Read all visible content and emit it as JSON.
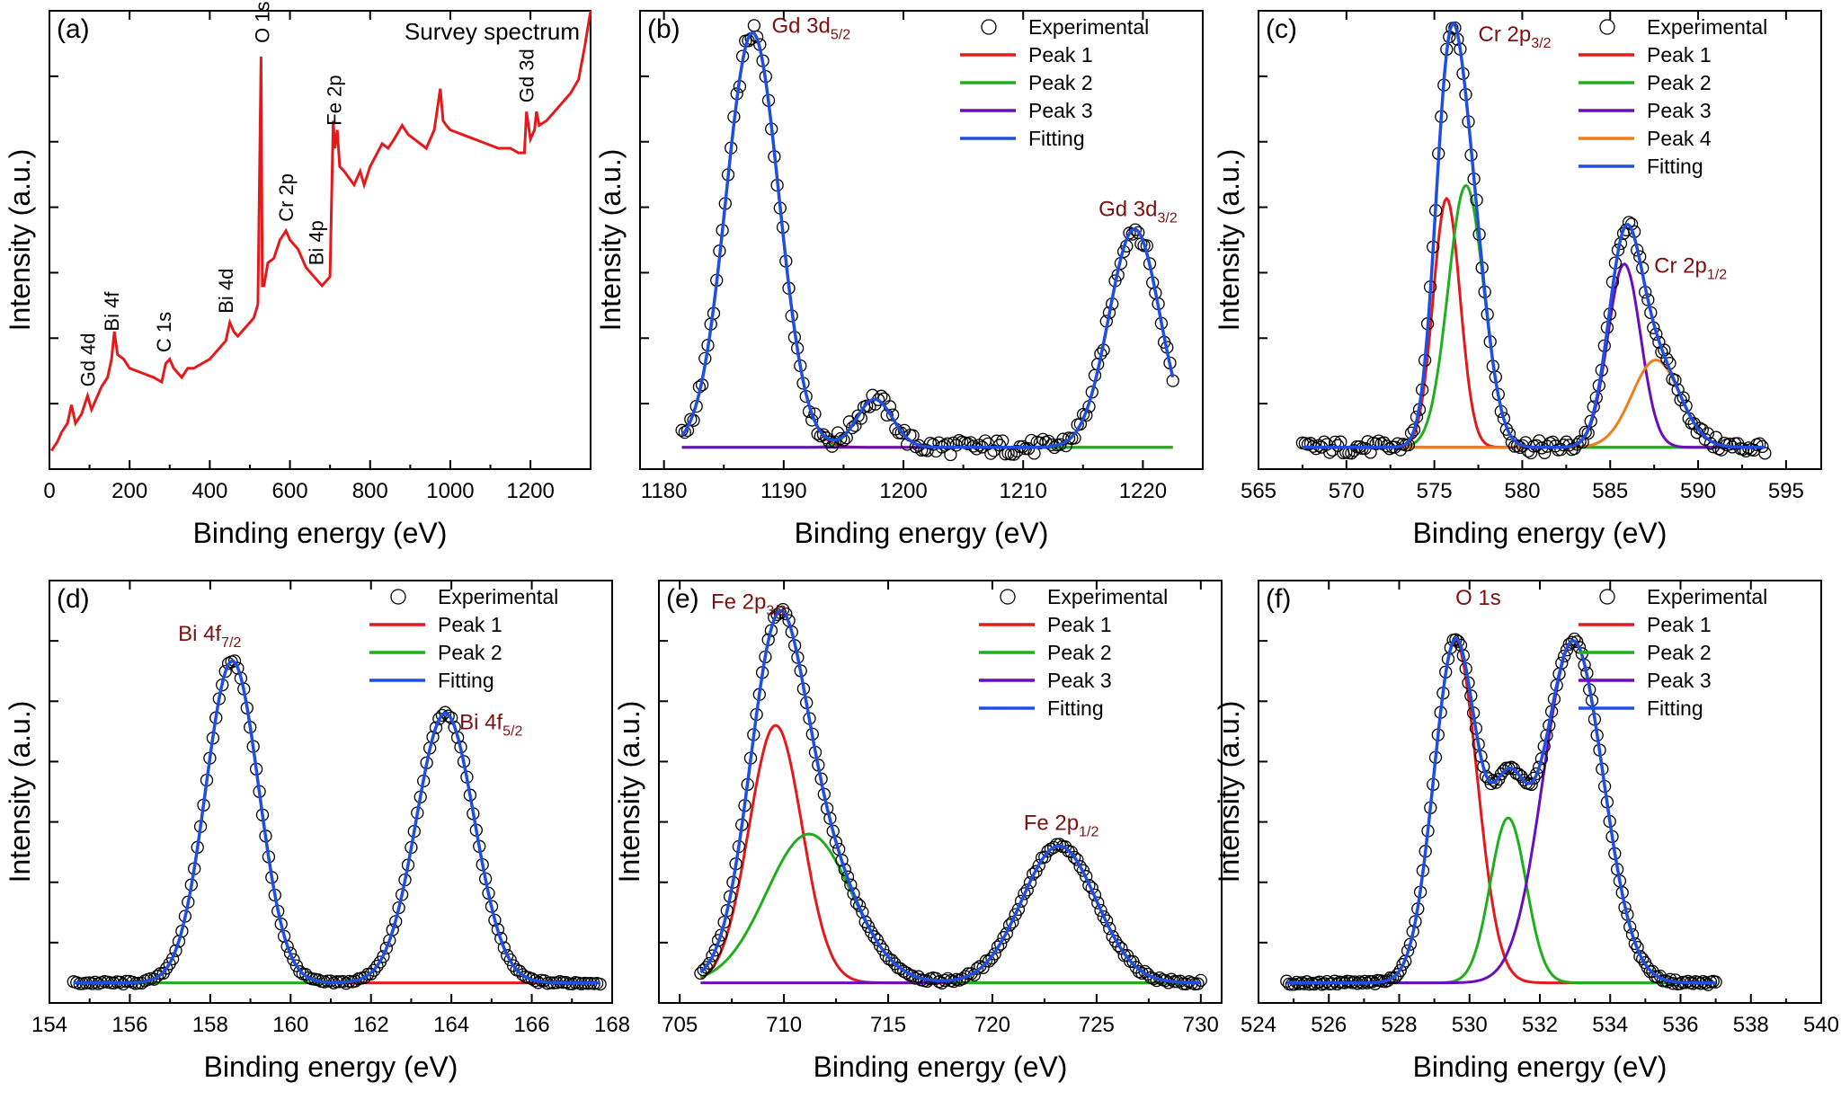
{
  "figure": {
    "x_axis_title": "Binding energy (eV)",
    "y_axis_title": "Intensity (a.u.)"
  },
  "colors": {
    "experimental": "#000000",
    "peak_1": "#e31a1c",
    "peak_2": "#1fae1f",
    "peak_3": "#6a0dbd",
    "peak_4": "#f07d18",
    "fitting": "#1f4fe0",
    "survey": "#e31a1c",
    "peak_label": "#7b1010"
  },
  "chart_data": [
    {
      "id": "a",
      "panel_label": "(a)",
      "type": "line",
      "title": "Survey spectrum",
      "xlabel": "Binding energy (eV)",
      "ylabel": "Intensity (a.u.)",
      "xlim": [
        0,
        1350
      ],
      "ylim": [
        0,
        100
      ],
      "xticks": [
        0,
        200,
        400,
        600,
        800,
        1000,
        1200
      ],
      "series": [
        {
          "name": "Survey",
          "x": [
            5,
            20,
            30,
            45,
            55,
            65,
            80,
            95,
            105,
            115,
            130,
            145,
            155,
            162,
            170,
            185,
            200,
            230,
            260,
            280,
            290,
            300,
            310,
            330,
            345,
            360,
            380,
            400,
            420,
            440,
            450,
            460,
            470,
            480,
            500,
            510,
            520,
            528,
            531,
            535,
            545,
            560,
            575,
            590,
            600,
            620,
            640,
            660,
            680,
            700,
            708,
            712,
            718,
            724,
            735,
            760,
            775,
            785,
            800,
            830,
            845,
            860,
            880,
            895,
            910,
            940,
            960,
            975,
            982,
            990,
            1000,
            1030,
            1060,
            1090,
            1120,
            1150,
            1170,
            1185,
            1190,
            1200,
            1210,
            1215,
            1222,
            1240,
            1270,
            1300,
            1320,
            1335,
            1350
          ],
          "y": [
            4,
            6,
            8,
            10,
            14,
            10,
            12,
            16,
            13,
            15,
            18,
            20,
            24,
            30,
            25,
            24,
            22,
            21,
            20,
            19,
            23,
            24,
            22,
            20,
            22,
            22,
            23,
            24,
            26,
            28,
            32,
            30,
            29,
            30,
            32,
            33,
            36,
            90,
            40,
            40,
            45,
            46,
            50,
            52,
            50,
            48,
            44,
            42,
            40,
            42,
            76,
            70,
            74,
            66,
            65,
            62,
            65,
            62,
            66,
            71,
            70,
            72,
            75,
            73,
            72,
            70,
            74,
            83,
            76,
            75,
            74,
            73,
            72,
            71,
            70,
            70,
            69,
            69,
            78,
            72,
            74,
            78,
            75,
            76,
            79,
            82,
            85,
            92,
            100
          ]
        }
      ],
      "annotations": [
        {
          "text": "Gd 4d",
          "x": 95
        },
        {
          "text": "Bi 4f",
          "x": 155
        },
        {
          "text": "C 1s",
          "x": 285
        },
        {
          "text": "Bi 4d",
          "x": 440
        },
        {
          "text": "O 1s",
          "x": 530
        },
        {
          "text": "Cr 2p",
          "x": 590
        },
        {
          "text": "Bi 4p",
          "x": 665
        },
        {
          "text": "Fe 2p",
          "x": 710
        },
        {
          "text": "Gd 3d",
          "x": 1190
        }
      ]
    },
    {
      "id": "b",
      "panel_label": "(b)",
      "type": "line",
      "xlabel": "Binding energy (eV)",
      "ylabel": "Intensity (a.u.)",
      "xlim": [
        1178,
        1225
      ],
      "ylim": [
        0,
        105
      ],
      "xticks": [
        1180,
        1190,
        1200,
        1210,
        1220
      ],
      "exp_range": [
        1181.5,
        1222.5
      ],
      "baseline": 5,
      "experimental_noise": 1.8,
      "peaks": [
        {
          "name": "Peak 1",
          "center": 1187.4,
          "amplitude": 95,
          "fwhm": 5.2
        },
        {
          "name": "Peak 2",
          "center": 1197.6,
          "amplitude": 11,
          "fwhm": 3.5
        },
        {
          "name": "Peak 3",
          "center": 1219.3,
          "amplitude": 50,
          "fwhm": 5.0
        }
      ],
      "legend": [
        "Experimental",
        "Peak 1",
        "Peak 2",
        "Peak 3",
        "Fitting"
      ],
      "legend_colors": [
        "experimental",
        "peak_1",
        "peak_2",
        "peak_3",
        "fitting"
      ],
      "peak_labels": [
        {
          "main": "Gd 3d",
          "sub": "5/2",
          "x": 1189,
          "y": 100
        },
        {
          "main": "Gd 3d",
          "sub": "3/2",
          "x": 1216.3,
          "y": 58
        }
      ]
    },
    {
      "id": "c",
      "panel_label": "(c)",
      "type": "line",
      "xlabel": "Binding energy (eV)",
      "ylabel": "Intensity (a.u.)",
      "xlim": [
        565,
        597
      ],
      "ylim": [
        0,
        105
      ],
      "xticks": [
        565,
        570,
        575,
        580,
        585,
        590,
        595
      ],
      "exp_range": [
        567.5,
        593.8
      ],
      "baseline": 5,
      "experimental_noise": 1.5,
      "peaks": [
        {
          "name": "Peak 1",
          "center": 575.7,
          "amplitude": 57,
          "fwhm": 1.8
        },
        {
          "name": "Peak 2",
          "center": 576.8,
          "amplitude": 60,
          "fwhm": 2.4
        },
        {
          "name": "Peak 3",
          "center": 585.8,
          "amplitude": 42,
          "fwhm": 2.2
        },
        {
          "name": "Peak 4",
          "center": 587.6,
          "amplitude": 20,
          "fwhm": 3.2
        }
      ],
      "legend": [
        "Experimental",
        "Peak 1",
        "Peak 2",
        "Peak 3",
        "Peak 4",
        "Fitting"
      ],
      "legend_colors": [
        "experimental",
        "peak_1",
        "peak_2",
        "peak_3",
        "peak_4",
        "fitting"
      ],
      "peak_labels": [
        {
          "main": "Cr 2p",
          "sub": "3/2",
          "x": 577.5,
          "y": 98
        },
        {
          "main": "Cr 2p",
          "sub": "1/2",
          "x": 587.5,
          "y": 45
        }
      ]
    },
    {
      "id": "d",
      "panel_label": "(d)",
      "type": "line",
      "xlabel": "Binding energy (eV)",
      "ylabel": "Intensity (a.u.)",
      "xlim": [
        154,
        168
      ],
      "ylim": [
        0,
        105
      ],
      "xticks": [
        154,
        156,
        158,
        160,
        162,
        164,
        166,
        168
      ],
      "exp_range": [
        154.6,
        167.7
      ],
      "baseline": 5,
      "experimental_noise": 0.4,
      "peaks": [
        {
          "name": "Peak 1",
          "center": 158.55,
          "amplitude": 80,
          "fwhm": 1.55
        },
        {
          "name": "Peak 2",
          "center": 163.85,
          "amplitude": 67,
          "fwhm": 1.7
        }
      ],
      "legend": [
        "Experimental",
        "Peak 1",
        "Peak 2",
        "Fitting"
      ],
      "legend_colors": [
        "experimental",
        "peak_1",
        "peak_2",
        "fitting"
      ],
      "peak_labels": [
        {
          "main": "Bi 4f",
          "sub": "7/2",
          "x": 157.2,
          "y": 90
        },
        {
          "main": "Bi 4f",
          "sub": "5/2",
          "x": 164.2,
          "y": 68
        }
      ]
    },
    {
      "id": "e",
      "panel_label": "(e)",
      "type": "line",
      "xlabel": "Binding energy (eV)",
      "ylabel": "Intensity (a.u.)",
      "xlim": [
        704,
        731
      ],
      "ylim": [
        0,
        105
      ],
      "xticks": [
        705,
        710,
        715,
        720,
        725,
        730
      ],
      "exp_range": [
        706.0,
        730.0
      ],
      "baseline": 5,
      "experimental_noise": 0.6,
      "peaks": [
        {
          "name": "Peak 1",
          "center": 709.6,
          "amplitude": 64,
          "fwhm": 3.0
        },
        {
          "name": "Peak 2",
          "center": 711.2,
          "amplitude": 37,
          "fwhm": 4.8
        },
        {
          "name": "Peak 3",
          "center": 723.2,
          "amplitude": 34,
          "fwhm": 4.2
        }
      ],
      "legend": [
        "Experimental",
        "Peak 1",
        "Peak 2",
        "Peak 3",
        "Fitting"
      ],
      "legend_colors": [
        "experimental",
        "peak_1",
        "peak_2",
        "peak_3",
        "fitting"
      ],
      "peak_labels": [
        {
          "main": "Fe 2p",
          "sub": "3/2",
          "x": 706.5,
          "y": 98
        },
        {
          "main": "Fe 2p",
          "sub": "1/2",
          "x": 721.5,
          "y": 43
        }
      ]
    },
    {
      "id": "f",
      "panel_label": "(f)",
      "type": "line",
      "xlabel": "Binding energy (eV)",
      "ylabel": "Intensity (a.u.)",
      "xlim": [
        524,
        540
      ],
      "ylim": [
        0,
        105
      ],
      "xticks": [
        524,
        526,
        528,
        530,
        532,
        534,
        536,
        538,
        540
      ],
      "exp_range": [
        524.8,
        537.0
      ],
      "baseline": 5,
      "experimental_noise": 0.5,
      "peaks": [
        {
          "name": "Peak 1",
          "center": 529.6,
          "amplitude": 85,
          "fwhm": 1.45
        },
        {
          "name": "Peak 2",
          "center": 531.1,
          "amplitude": 41,
          "fwhm": 1.2
        },
        {
          "name": "Peak 3",
          "center": 532.95,
          "amplitude": 85,
          "fwhm": 2.0
        }
      ],
      "legend": [
        "Experimental",
        "Peak 1",
        "Peak 2",
        "Peak 3",
        "Fitting"
      ],
      "legend_colors": [
        "experimental",
        "peak_1",
        "peak_2",
        "peak_3",
        "fitting"
      ],
      "peak_labels": [
        {
          "main": "O 1s",
          "sub": "",
          "x": 529.6,
          "y": 99
        }
      ]
    }
  ]
}
